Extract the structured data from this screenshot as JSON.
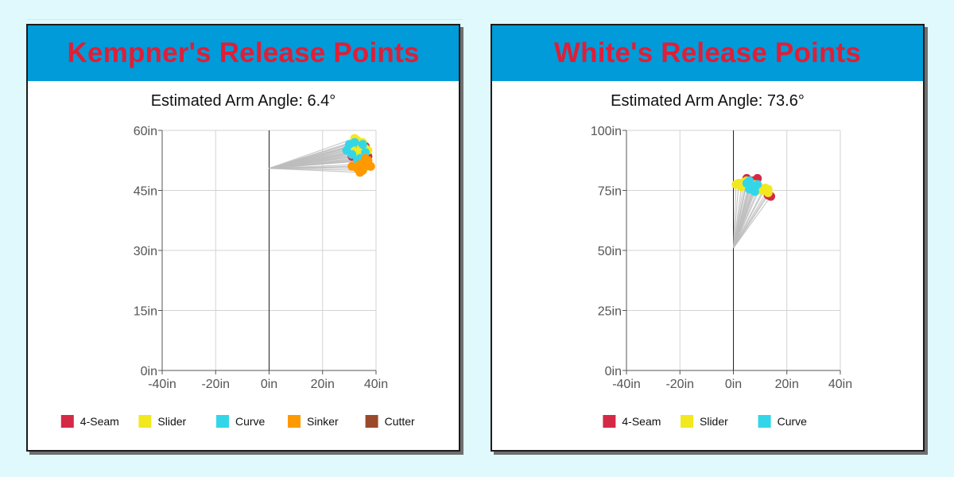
{
  "chart_data": [
    {
      "type": "scatter",
      "title": "Kempner's Release Points",
      "subtitle": "Estimated Arm Angle: 6.4°",
      "xlim": [
        -40,
        40
      ],
      "ylim": [
        0,
        60
      ],
      "x_ticks": [
        -40,
        -20,
        0,
        20,
        40
      ],
      "y_ticks": [
        0,
        15,
        30,
        45,
        60
      ],
      "x_tick_labels": [
        "-40in",
        "-20in",
        "0in",
        "20in",
        "40in"
      ],
      "y_tick_labels": [
        "0in",
        "15in",
        "30in",
        "45in",
        "60in"
      ],
      "grid": true,
      "origin": [
        0,
        50.5
      ],
      "legend_position": "bottom",
      "series": [
        {
          "name": "4-Seam",
          "color": "#d42a45",
          "points": [
            [
              31,
              53.5
            ],
            [
              33,
              56.5
            ],
            [
              35,
              54
            ],
            [
              37,
              53.5
            ],
            [
              32,
              55
            ],
            [
              34,
              52.5
            ],
            [
              36,
              56
            ]
          ]
        },
        {
          "name": "Slider",
          "color": "#f2e81e",
          "points": [
            [
              31,
              56
            ],
            [
              32,
              58
            ],
            [
              33,
              57.5
            ],
            [
              34,
              55
            ],
            [
              35,
              54
            ],
            [
              36,
              55.5
            ],
            [
              33,
              53.5
            ],
            [
              32,
              54.5
            ],
            [
              37,
              55
            ],
            [
              35,
              57
            ],
            [
              31,
              55.5
            ],
            [
              34,
              56.5
            ],
            [
              36,
              52.5
            ]
          ]
        },
        {
          "name": "Curve",
          "color": "#33d6e8",
          "points": [
            [
              29,
              55
            ],
            [
              30,
              56.5
            ],
            [
              32,
              57
            ],
            [
              34,
              53
            ],
            [
              35,
              56.5
            ],
            [
              33,
              52.5
            ],
            [
              36,
              54.5
            ],
            [
              31,
              54
            ]
          ]
        },
        {
          "name": "Sinker",
          "color": "#ff9900",
          "points": [
            [
              31,
              51
            ],
            [
              33,
              50.5
            ],
            [
              34,
              51.5
            ],
            [
              35,
              50
            ],
            [
              36,
              51
            ],
            [
              37,
              52.5
            ],
            [
              38,
              51
            ],
            [
              34,
              49.5
            ],
            [
              36,
              53
            ]
          ]
        },
        {
          "name": "Cutter",
          "color": "#9a4a2a",
          "points": []
        }
      ]
    },
    {
      "type": "scatter",
      "title": "White's Release Points",
      "subtitle": "Estimated Arm Angle: 73.6°",
      "xlim": [
        -40,
        40
      ],
      "ylim": [
        0,
        100
      ],
      "x_ticks": [
        -40,
        -20,
        0,
        20,
        40
      ],
      "y_ticks": [
        0,
        25,
        50,
        75,
        100
      ],
      "x_tick_labels": [
        "-40in",
        "-20in",
        "0in",
        "20in",
        "40in"
      ],
      "y_tick_labels": [
        "0in",
        "25in",
        "50in",
        "75in",
        "100in"
      ],
      "grid": true,
      "origin": [
        0,
        51
      ],
      "legend_position": "bottom",
      "series": [
        {
          "name": "4-Seam",
          "color": "#d42a45",
          "points": [
            [
              5,
              80
            ],
            [
              7,
              79
            ],
            [
              9,
              80
            ],
            [
              13,
              73
            ],
            [
              14,
              72.5
            ],
            [
              6,
              77
            ]
          ]
        },
        {
          "name": "Slider",
          "color": "#f2e81e",
          "points": [
            [
              1,
              77.5
            ],
            [
              2,
              78
            ],
            [
              3,
              76.5
            ],
            [
              4,
              78.5
            ],
            [
              6,
              76
            ],
            [
              8,
              77.5
            ],
            [
              10,
              76
            ],
            [
              11,
              75
            ],
            [
              12,
              76
            ],
            [
              13,
              74
            ],
            [
              13,
              75.5
            ],
            [
              9,
              75
            ],
            [
              7,
              75.5
            ],
            [
              5,
              79
            ]
          ]
        },
        {
          "name": "Curve",
          "color": "#33d6e8",
          "points": [
            [
              5,
              78
            ],
            [
              6,
              79
            ],
            [
              7,
              77
            ],
            [
              8,
              76
            ],
            [
              6,
              75.5
            ],
            [
              9,
              77.5
            ],
            [
              8,
              74.5
            ]
          ]
        }
      ]
    }
  ]
}
